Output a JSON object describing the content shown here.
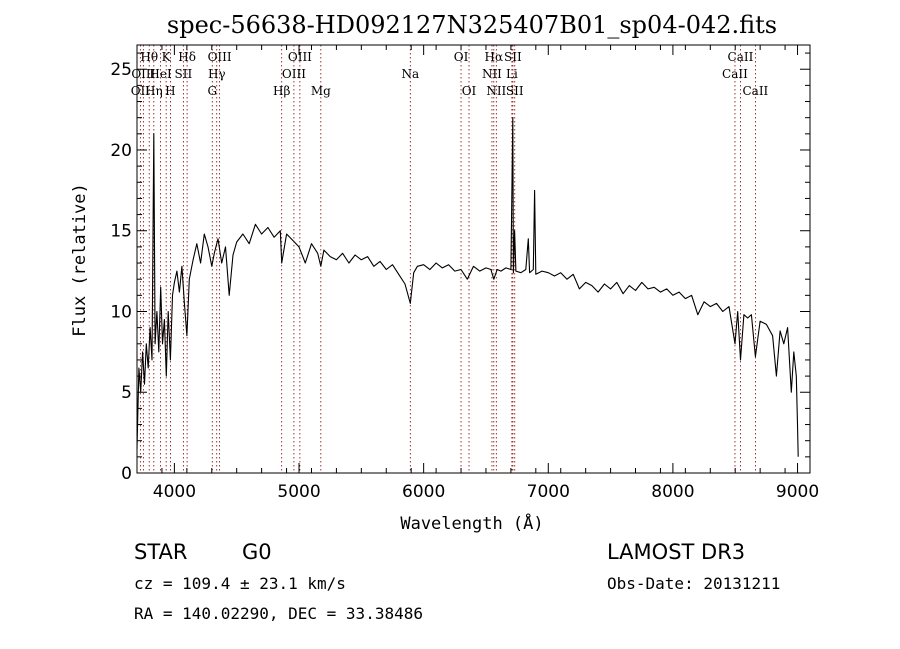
{
  "chart_data": {
    "type": "line",
    "title": "spec-56638-HD092127N325407B01_sp04-042.fits",
    "xlabel": "Wavelength (Å)",
    "ylabel": "Flux (relative)",
    "xlim": [
      3700,
      9100
    ],
    "ylim": [
      0,
      26.5
    ],
    "x_ticks": [
      4000,
      5000,
      6000,
      7000,
      8000,
      9000
    ],
    "y_ticks": [
      0,
      5,
      10,
      15,
      20,
      25
    ],
    "line_color": "#000000",
    "marker_color": "#8b0000",
    "spectrum": [
      [
        3700,
        1.5
      ],
      [
        3715,
        6.5
      ],
      [
        3730,
        5.0
      ],
      [
        3745,
        7.5
      ],
      [
        3760,
        5.5
      ],
      [
        3775,
        8.0
      ],
      [
        3790,
        6.5
      ],
      [
        3805,
        9.0
      ],
      [
        3820,
        7.0
      ],
      [
        3835,
        21.0
      ],
      [
        3845,
        8.0
      ],
      [
        3860,
        10.0
      ],
      [
        3875,
        7.5
      ],
      [
        3890,
        11.5
      ],
      [
        3905,
        8.0
      ],
      [
        3920,
        9.5
      ],
      [
        3935,
        6.0
      ],
      [
        3950,
        10.0
      ],
      [
        3968,
        7.0
      ],
      [
        3985,
        11.0
      ],
      [
        4000,
        11.8
      ],
      [
        4020,
        12.5
      ],
      [
        4040,
        11.2
      ],
      [
        4060,
        12.8
      ],
      [
        4080,
        10.5
      ],
      [
        4100,
        8.5
      ],
      [
        4120,
        12.0
      ],
      [
        4150,
        13.2
      ],
      [
        4180,
        14.2
      ],
      [
        4210,
        13.0
      ],
      [
        4240,
        14.8
      ],
      [
        4270,
        14.0
      ],
      [
        4300,
        12.8
      ],
      [
        4320,
        13.6
      ],
      [
        4350,
        14.5
      ],
      [
        4380,
        13.0
      ],
      [
        4410,
        14.0
      ],
      [
        4440,
        11.0
      ],
      [
        4470,
        13.5
      ],
      [
        4500,
        14.3
      ],
      [
        4550,
        14.8
      ],
      [
        4600,
        14.2
      ],
      [
        4650,
        15.4
      ],
      [
        4700,
        14.8
      ],
      [
        4750,
        15.2
      ],
      [
        4800,
        14.6
      ],
      [
        4850,
        15.0
      ],
      [
        4861,
        13.0
      ],
      [
        4900,
        14.8
      ],
      [
        4950,
        14.4
      ],
      [
        5000,
        14.0
      ],
      [
        5050,
        13.0
      ],
      [
        5100,
        14.2
      ],
      [
        5150,
        13.6
      ],
      [
        5175,
        12.8
      ],
      [
        5200,
        13.8
      ],
      [
        5250,
        13.4
      ],
      [
        5300,
        13.2
      ],
      [
        5350,
        13.6
      ],
      [
        5400,
        13.0
      ],
      [
        5450,
        13.5
      ],
      [
        5500,
        13.2
      ],
      [
        5550,
        13.4
      ],
      [
        5600,
        12.8
      ],
      [
        5650,
        13.1
      ],
      [
        5700,
        12.6
      ],
      [
        5750,
        12.9
      ],
      [
        5800,
        12.3
      ],
      [
        5850,
        11.7
      ],
      [
        5893,
        10.5
      ],
      [
        5920,
        12.4
      ],
      [
        5950,
        12.8
      ],
      [
        6000,
        12.9
      ],
      [
        6050,
        12.6
      ],
      [
        6100,
        13.0
      ],
      [
        6150,
        12.7
      ],
      [
        6200,
        12.9
      ],
      [
        6250,
        12.5
      ],
      [
        6300,
        12.6
      ],
      [
        6350,
        12.0
      ],
      [
        6400,
        12.8
      ],
      [
        6450,
        12.5
      ],
      [
        6500,
        12.7
      ],
      [
        6540,
        12.6
      ],
      [
        6563,
        12.0
      ],
      [
        6590,
        12.6
      ],
      [
        6620,
        12.5
      ],
      [
        6660,
        12.7
      ],
      [
        6700,
        12.6
      ],
      [
        6715,
        22.0
      ],
      [
        6720,
        12.4
      ],
      [
        6730,
        15.0
      ],
      [
        6740,
        12.5
      ],
      [
        6780,
        12.4
      ],
      [
        6820,
        12.6
      ],
      [
        6840,
        14.5
      ],
      [
        6850,
        12.4
      ],
      [
        6880,
        12.6
      ],
      [
        6890,
        17.5
      ],
      [
        6900,
        12.3
      ],
      [
        6950,
        12.5
      ],
      [
        7000,
        12.4
      ],
      [
        7050,
        12.2
      ],
      [
        7100,
        12.4
      ],
      [
        7150,
        12.0
      ],
      [
        7200,
        12.3
      ],
      [
        7250,
        11.4
      ],
      [
        7300,
        11.8
      ],
      [
        7350,
        11.6
      ],
      [
        7400,
        11.2
      ],
      [
        7450,
        11.7
      ],
      [
        7500,
        11.4
      ],
      [
        7550,
        11.8
      ],
      [
        7600,
        11.1
      ],
      [
        7650,
        11.6
      ],
      [
        7700,
        11.3
      ],
      [
        7750,
        11.8
      ],
      [
        7800,
        11.4
      ],
      [
        7850,
        11.5
      ],
      [
        7900,
        11.2
      ],
      [
        7950,
        11.4
      ],
      [
        8000,
        11.0
      ],
      [
        8050,
        11.2
      ],
      [
        8100,
        10.8
      ],
      [
        8150,
        11.0
      ],
      [
        8200,
        9.8
      ],
      [
        8250,
        10.6
      ],
      [
        8300,
        10.3
      ],
      [
        8350,
        10.5
      ],
      [
        8400,
        10.0
      ],
      [
        8450,
        10.3
      ],
      [
        8498,
        8.0
      ],
      [
        8520,
        10.0
      ],
      [
        8542,
        7.0
      ],
      [
        8570,
        9.8
      ],
      [
        8600,
        9.6
      ],
      [
        8630,
        9.8
      ],
      [
        8662,
        7.2
      ],
      [
        8700,
        9.4
      ],
      [
        8750,
        9.2
      ],
      [
        8800,
        8.5
      ],
      [
        8830,
        6.0
      ],
      [
        8860,
        8.8
      ],
      [
        8890,
        8.0
      ],
      [
        8920,
        9.0
      ],
      [
        8950,
        5.0
      ],
      [
        8970,
        7.5
      ],
      [
        8990,
        6.0
      ],
      [
        9000,
        3.0
      ],
      [
        9005,
        1.0
      ]
    ],
    "line_markers": [
      {
        "label": "OII",
        "wavelength": 3727,
        "row": 2
      },
      {
        "label": "Hθ",
        "wavelength": 3798,
        "row": 0
      },
      {
        "label": "OIII",
        "wavelength": 3751,
        "row": 1
      },
      {
        "label": "Hη",
        "wavelength": 3835,
        "row": 2
      },
      {
        "label": "HeI",
        "wavelength": 3889,
        "row": 1
      },
      {
        "label": "K",
        "wavelength": 3934,
        "row": 0
      },
      {
        "label": "H",
        "wavelength": 3968,
        "row": 2
      },
      {
        "label": "SII",
        "wavelength": 4072,
        "row": 1
      },
      {
        "label": "Hδ",
        "wavelength": 4102,
        "row": 0
      },
      {
        "label": "G",
        "wavelength": 4304,
        "row": 2
      },
      {
        "label": "Hγ",
        "wavelength": 4340,
        "row": 1
      },
      {
        "label": "OIII",
        "wavelength": 4363,
        "row": 0
      },
      {
        "label": "Hβ",
        "wavelength": 4861,
        "row": 2
      },
      {
        "label": "OIII",
        "wavelength": 4959,
        "row": 1
      },
      {
        "label": "OIII",
        "wavelength": 5007,
        "row": 0
      },
      {
        "label": "Mg",
        "wavelength": 5175,
        "row": 2
      },
      {
        "label": "Na",
        "wavelength": 5893,
        "row": 1
      },
      {
        "label": "OI",
        "wavelength": 6300,
        "row": 0
      },
      {
        "label": "OI",
        "wavelength": 6364,
        "row": 2
      },
      {
        "label": "NII",
        "wavelength": 6548,
        "row": 1
      },
      {
        "label": "Hα",
        "wavelength": 6563,
        "row": 0
      },
      {
        "label": "NII",
        "wavelength": 6583,
        "row": 2
      },
      {
        "label": "Li",
        "wavelength": 6708,
        "row": 1
      },
      {
        "label": "SII",
        "wavelength": 6716,
        "row": 0
      },
      {
        "label": "SII",
        "wavelength": 6731,
        "row": 2
      },
      {
        "label": "CaII",
        "wavelength": 8498,
        "row": 1
      },
      {
        "label": "CaII",
        "wavelength": 8542,
        "row": 0
      },
      {
        "label": "CaII",
        "wavelength": 8662,
        "row": 2
      }
    ]
  },
  "info": {
    "object_class": "STAR",
    "subclass": "G0",
    "survey": "LAMOST DR3",
    "redshift": "cz = 109.4 ± 23.1 km/s",
    "obs_date": "Obs-Date: 20131211",
    "coords": "RA = 140.02290, DEC =  33.38486"
  }
}
